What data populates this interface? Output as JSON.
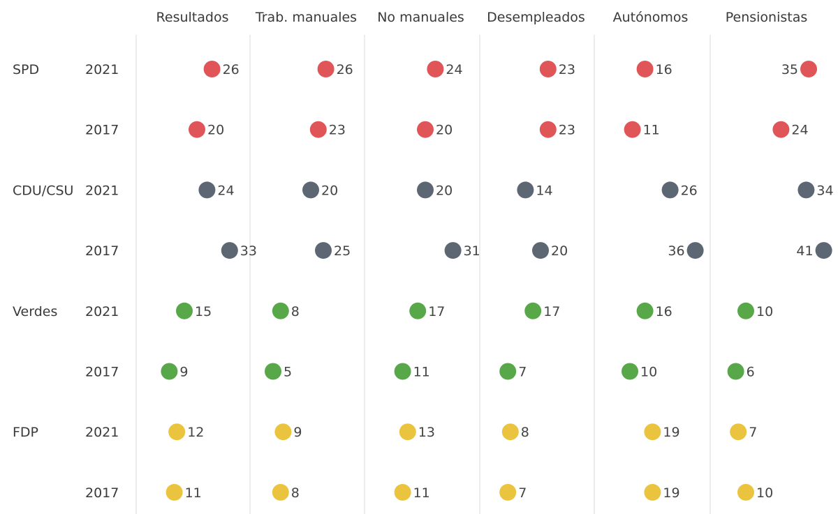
{
  "chart_data": {
    "type": "scatter",
    "columns": [
      "Resultados",
      "Trab. manuales",
      "No manuales",
      "Desempleados",
      "Autónomos",
      "Pensionistas"
    ],
    "parties": [
      {
        "name": "SPD",
        "color": "#e05658",
        "rows": [
          {
            "year": "2021",
            "values": [
              26,
              26,
              24,
              23,
              16,
              35
            ]
          },
          {
            "year": "2017",
            "values": [
              20,
              23,
              20,
              23,
              11,
              24
            ]
          }
        ]
      },
      {
        "name": "CDU/CSU",
        "color": "#5d6673",
        "rows": [
          {
            "year": "2021",
            "values": [
              24,
              20,
              20,
              14,
              26,
              34
            ]
          },
          {
            "year": "2017",
            "values": [
              33,
              25,
              31,
              20,
              36,
              41
            ]
          }
        ]
      },
      {
        "name": "Verdes",
        "color": "#58a84a",
        "rows": [
          {
            "year": "2021",
            "values": [
              15,
              8,
              17,
              17,
              16,
              10
            ]
          },
          {
            "year": "2017",
            "values": [
              9,
              5,
              11,
              7,
              10,
              6
            ]
          }
        ]
      },
      {
        "name": "FDP",
        "color": "#ebc43f",
        "rows": [
          {
            "year": "2021",
            "values": [
              12,
              9,
              13,
              8,
              19,
              7
            ]
          },
          {
            "year": "2017",
            "values": [
              11,
              8,
              11,
              7,
              19,
              10
            ]
          }
        ]
      }
    ],
    "value_labels_left_of_dot": [
      {
        "party": "SPD",
        "year": "2021",
        "column": "Pensionistas"
      },
      {
        "party": "CDU/CSU",
        "year": "2017",
        "column": "Autónomos"
      },
      {
        "party": "CDU/CSU",
        "year": "2017",
        "column": "Pensionistas"
      }
    ],
    "xlim": [
      0,
      45
    ],
    "grid": false
  }
}
